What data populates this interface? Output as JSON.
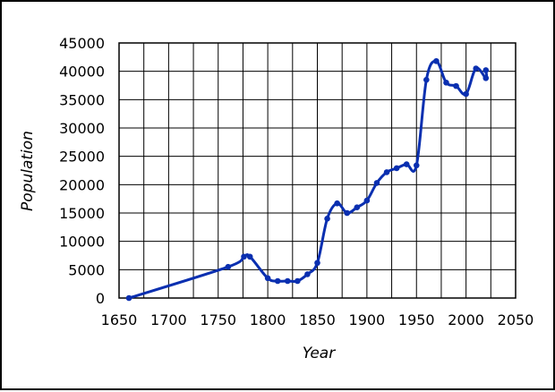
{
  "chart_data": {
    "type": "line",
    "title": "",
    "xlabel": "Year",
    "ylabel": "Population",
    "xlim": [
      1650,
      2050
    ],
    "ylim": [
      0,
      45000
    ],
    "xticks": [
      1650,
      1700,
      1750,
      1800,
      1850,
      1900,
      1950,
      2000,
      2050
    ],
    "yticks": [
      0,
      5000,
      10000,
      15000,
      20000,
      25000,
      30000,
      35000,
      40000,
      45000
    ],
    "grid": true,
    "legend": "none",
    "line_color": "#0a2fb0",
    "series": [
      {
        "x": [
          1660,
          1760,
          1776,
          1782,
          1800,
          1810,
          1820,
          1830,
          1840,
          1850,
          1860,
          1870,
          1880,
          1890,
          1900,
          1910,
          1920,
          1930,
          1940,
          1950,
          1960,
          1970,
          1980,
          1990,
          2000,
          2010,
          2020,
          2020
        ],
        "y": [
          0,
          5500,
          7300,
          7300,
          3500,
          3000,
          3000,
          3000,
          4200,
          6200,
          14000,
          16700,
          15000,
          16000,
          17200,
          20300,
          22200,
          22900,
          23600,
          23400,
          38500,
          41800,
          38000,
          37400,
          36000,
          40500,
          38800,
          40200
        ]
      }
    ]
  }
}
